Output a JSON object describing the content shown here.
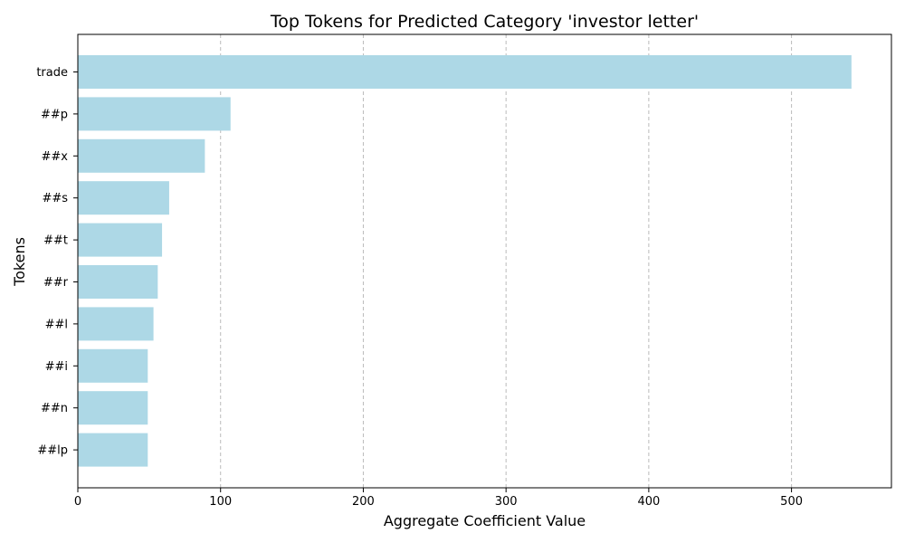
{
  "chart_data": {
    "type": "bar",
    "orientation": "horizontal",
    "title": "Top Tokens for Predicted Category 'investor letter'",
    "xlabel": "Aggregate Coefficient Value",
    "ylabel": "Tokens",
    "categories": [
      "trade",
      "##p",
      "##x",
      "##s",
      "##t",
      "##r",
      "##l",
      "##i",
      "##n",
      "##lp"
    ],
    "values": [
      542,
      107,
      89,
      64,
      59,
      56,
      53,
      49,
      49,
      49
    ],
    "xlim": [
      0,
      570
    ],
    "xticks": [
      0,
      100,
      200,
      300,
      400,
      500
    ],
    "grid": "x-axis dashed",
    "bar_color": "#add8e6"
  }
}
